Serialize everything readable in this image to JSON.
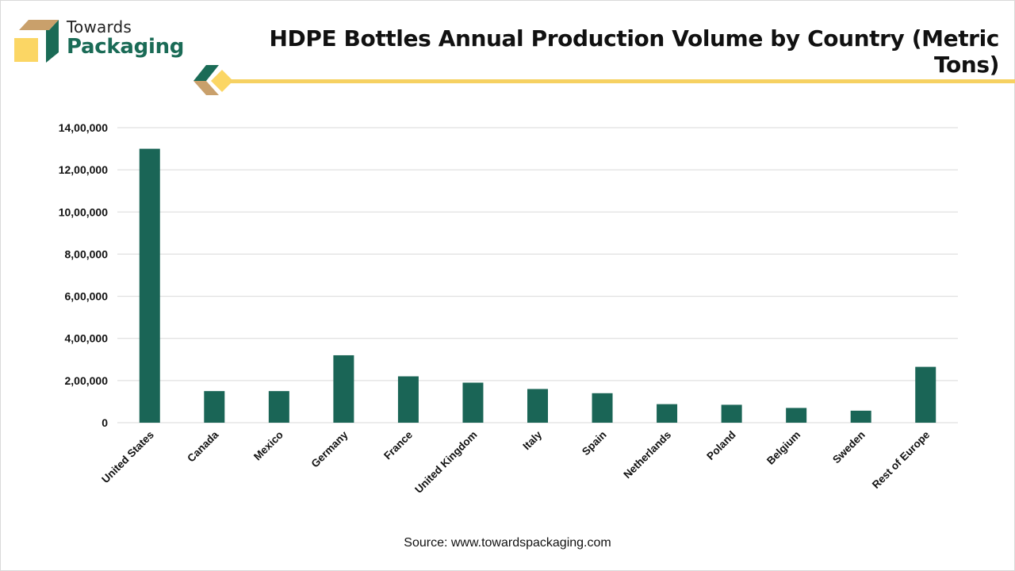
{
  "brand": {
    "name_top": "Towards",
    "name_bottom": "Packaging",
    "colors": {
      "green": "#1a6b56",
      "tan": "#c9a06b",
      "yellow": "#fbd664"
    }
  },
  "source": "Source: www.towardspackaging.com",
  "chart_data": {
    "type": "bar",
    "title": "HDPE Bottles Annual Production Volume by Country (Metric Tons)",
    "xlabel": "",
    "ylabel": "",
    "categories": [
      "United States",
      "Canada",
      "Mexico",
      "Germany",
      "France",
      "United Kingdom",
      "Italy",
      "Spain",
      "Netherlands",
      "Poland",
      "Belgium",
      "Sweden",
      "Rest of Europe"
    ],
    "values": [
      1300000,
      150000,
      150000,
      320000,
      220000,
      190000,
      160000,
      140000,
      88000,
      85000,
      70000,
      57000,
      265000
    ],
    "ylim": [
      0,
      1400000
    ],
    "yticks": [
      0,
      200000,
      400000,
      600000,
      800000,
      1000000,
      1200000,
      1400000
    ],
    "ytick_labels": [
      "0",
      "2,00,000",
      "4,00,000",
      "6,00,000",
      "8,00,000",
      "10,00,000",
      "12,00,000",
      "14,00,000"
    ],
    "grid": true,
    "legend": "none",
    "bar_color": "#1a6556",
    "gridline_color": "#d9d9d9"
  }
}
